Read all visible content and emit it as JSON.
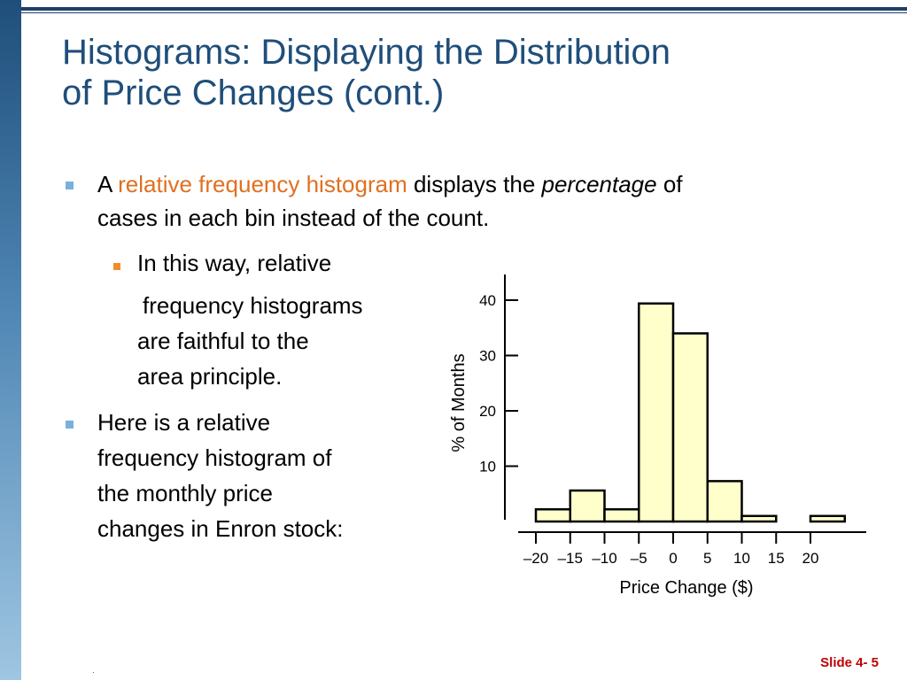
{
  "slide": {
    "title_line1": "Histograms: Displaying the Distribution",
    "title_line2": "of Price Changes (cont.)",
    "bullet1": {
      "pre": "A ",
      "highlight": "relative frequency histogram",
      "mid": " displays the ",
      "italic": "percentage",
      "post1": " of",
      "line2": "cases in each bin instead of the count."
    },
    "sub_bullet": {
      "line1": "In this way, relative",
      "line2": "frequency histograms",
      "line3": "are faithful to the",
      "line4": "area principle."
    },
    "bullet2": {
      "line1": "Here is a relative",
      "line2": "frequency histogram of",
      "line3": "the monthly price",
      "line4": "changes in Enron stock:"
    },
    "footer": "Slide 4- 5",
    "dot": "."
  },
  "colors": {
    "title": "#1f4e7a",
    "highlight": "#e07020",
    "bar_fill": "#ffffcc",
    "footer": "#c00000"
  },
  "chart_data": {
    "type": "bar",
    "xlabel": "Price Change ($)",
    "ylabel": "% of Months",
    "x_ticks": [
      "–20",
      "–15",
      "–10",
      "–5",
      "0",
      "5",
      "10",
      "15",
      "20"
    ],
    "x_tick_values": [
      -20,
      -15,
      -10,
      -5,
      0,
      5,
      10,
      15,
      20
    ],
    "y_ticks": [
      10,
      20,
      30,
      40
    ],
    "bins": [
      {
        "start": -20,
        "end": -15,
        "value": 2.2
      },
      {
        "start": -15,
        "end": -10,
        "value": 5.6
      },
      {
        "start": -10,
        "end": -5,
        "value": 2.2
      },
      {
        "start": -5,
        "end": 0,
        "value": 39.4
      },
      {
        "start": 0,
        "end": 5,
        "value": 34.0
      },
      {
        "start": 5,
        "end": 10,
        "value": 7.3
      },
      {
        "start": 10,
        "end": 15,
        "value": 1.0
      },
      {
        "start": 20,
        "end": 25,
        "value": 1.0
      }
    ],
    "xlim": [
      -22.5,
      27.5
    ],
    "ylim": [
      0,
      45
    ]
  }
}
